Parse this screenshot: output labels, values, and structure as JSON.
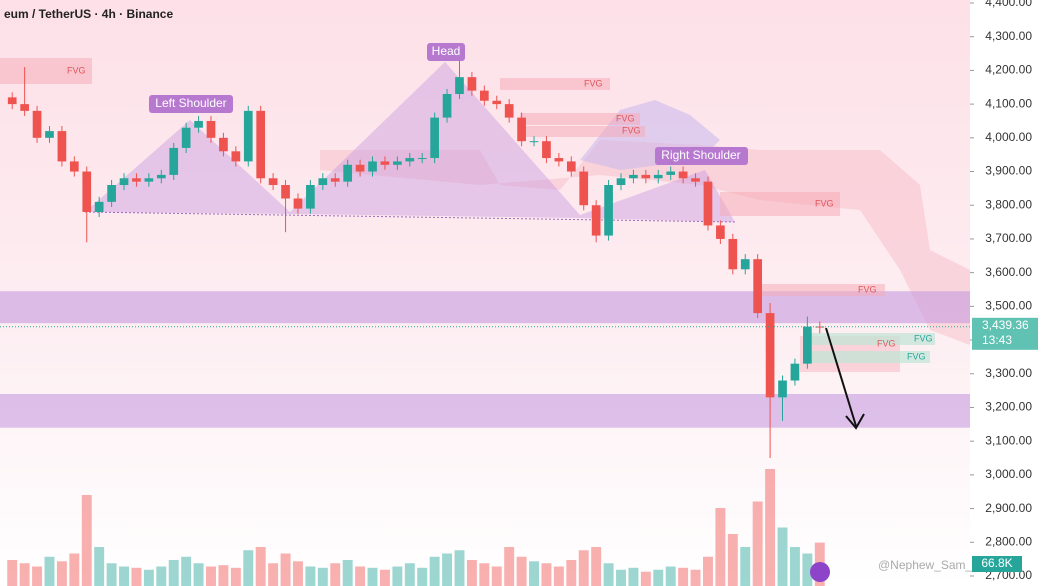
{
  "chart_data": {
    "type": "candlestick",
    "title": "eum / TetherUS · 4h · Binance",
    "open": [
      4120,
      4100,
      4080,
      4000,
      4020,
      3930,
      3900,
      3780,
      3810,
      3860,
      3880,
      3870,
      3880,
      3890,
      3970,
      4030,
      4050,
      4000,
      3960,
      3930,
      4080,
      3880,
      3860,
      3820,
      3790,
      3860,
      3880,
      3870,
      3920,
      3900,
      3930,
      3920,
      3930,
      3940,
      3940,
      4060,
      4130,
      4180,
      4140,
      4110,
      4100,
      4060,
      3990,
      3990,
      3940,
      3930,
      3900,
      3800,
      3710,
      3860,
      3880,
      3890,
      3880,
      3890,
      3900,
      3880,
      3870,
      3740,
      3700,
      3610,
      3640,
      3480,
      3230,
      3280,
      3330,
      3440
    ],
    "high": [
      4135,
      4210,
      4095,
      4035,
      4035,
      3945,
      3915,
      3825,
      3875,
      3895,
      3895,
      3895,
      3905,
      3985,
      4045,
      4065,
      4065,
      4015,
      3975,
      4095,
      4095,
      3895,
      3875,
      3835,
      3875,
      3895,
      3895,
      3935,
      3935,
      3945,
      3945,
      3945,
      3955,
      3955,
      4075,
      4145,
      4230,
      4195,
      4155,
      4125,
      4115,
      4075,
      4005,
      4005,
      3955,
      3945,
      3915,
      3815,
      3875,
      3895,
      3905,
      3905,
      3905,
      3915,
      3915,
      3895,
      3885,
      3755,
      3715,
      3655,
      3655,
      3510,
      3295,
      3345,
      3470,
      3455
    ],
    "low": [
      4085,
      4065,
      3985,
      3985,
      3915,
      3885,
      3690,
      3765,
      3795,
      3845,
      3855,
      3855,
      3865,
      3875,
      3955,
      4015,
      3985,
      3945,
      3915,
      3915,
      3865,
      3845,
      3720,
      3775,
      3775,
      3845,
      3855,
      3855,
      3885,
      3885,
      3905,
      3905,
      3915,
      3925,
      3925,
      4045,
      4115,
      4125,
      4095,
      4085,
      4045,
      3975,
      3975,
      3925,
      3915,
      3885,
      3785,
      3690,
      3695,
      3845,
      3865,
      3865,
      3865,
      3875,
      3865,
      3855,
      3725,
      3685,
      3595,
      3595,
      3465,
      3050,
      3160,
      3265,
      3315,
      3420
    ],
    "close": [
      4100,
      4080,
      4000,
      4020,
      3930,
      3900,
      3780,
      3810,
      3860,
      3880,
      3870,
      3880,
      3890,
      3970,
      4030,
      4050,
      4000,
      3960,
      3930,
      4080,
      3880,
      3860,
      3820,
      3790,
      3860,
      3880,
      3870,
      3920,
      3900,
      3930,
      3920,
      3930,
      3940,
      3940,
      4060,
      4130,
      4180,
      4140,
      4110,
      4100,
      4060,
      3990,
      3990,
      3940,
      3930,
      3900,
      3800,
      3710,
      3860,
      3880,
      3890,
      3880,
      3890,
      3900,
      3880,
      3870,
      3740,
      3700,
      3610,
      3640,
      3480,
      3230,
      3280,
      3330,
      3440,
      3439.36
    ],
    "volume": [
      40,
      35,
      30,
      45,
      38,
      50,
      140,
      60,
      35,
      30,
      28,
      25,
      30,
      40,
      45,
      35,
      30,
      32,
      28,
      55,
      60,
      35,
      50,
      38,
      30,
      28,
      35,
      40,
      30,
      28,
      25,
      30,
      35,
      28,
      45,
      50,
      55,
      40,
      35,
      30,
      60,
      45,
      38,
      35,
      30,
      40,
      55,
      60,
      35,
      25,
      28,
      22,
      25,
      30,
      28,
      25,
      45,
      120,
      80,
      60,
      130,
      180,
      90,
      60,
      50,
      66.8
    ],
    "volume_label": "66.8K",
    "up_color": "#26a69a",
    "down_color": "#ef5350",
    "ylim": [
      2700,
      4400
    ],
    "yticks": [
      {
        "value": 4400,
        "label": "4,400.00"
      },
      {
        "value": 4300,
        "label": "4,300.00"
      },
      {
        "value": 4200,
        "label": "4,200.00"
      },
      {
        "value": 4100,
        "label": "4,100.00"
      },
      {
        "value": 4000,
        "label": "4,000.00"
      },
      {
        "value": 3900,
        "label": "3,900.00"
      },
      {
        "value": 3800,
        "label": "3,800.00"
      },
      {
        "value": 3700,
        "label": "3,700.00"
      },
      {
        "value": 3600,
        "label": "3,600.00"
      },
      {
        "value": 3500,
        "label": "3,500.00"
      },
      {
        "value": 3400,
        "label": "3,400.00"
      },
      {
        "value": 3300,
        "label": "3,300.00"
      },
      {
        "value": 3200,
        "label": "3,200.00"
      },
      {
        "value": 3100,
        "label": "3,100.00"
      },
      {
        "value": 3000,
        "label": "3,000.00"
      },
      {
        "value": 2900,
        "label": "2,900.00"
      },
      {
        "value": 2800,
        "label": "2,800.00"
      },
      {
        "value": 2700,
        "label": "2,700.00"
      }
    ],
    "last_price": {
      "value": 3439.36,
      "label": "3,439.36"
    },
    "countdown": "13:43",
    "zones": [
      [
        3450,
        3545
      ],
      [
        3140,
        3240
      ]
    ],
    "annotations": {
      "left_shoulder": "Left Shoulder",
      "head": "Head",
      "right_shoulder": "Right Shoulder",
      "fvg": [
        "FVG",
        "FVG",
        "FVG",
        "FVG",
        "FVG",
        "FVG",
        "FVG",
        "FVG",
        "FVG"
      ]
    },
    "watermark": "@Nephew_Sam_"
  }
}
